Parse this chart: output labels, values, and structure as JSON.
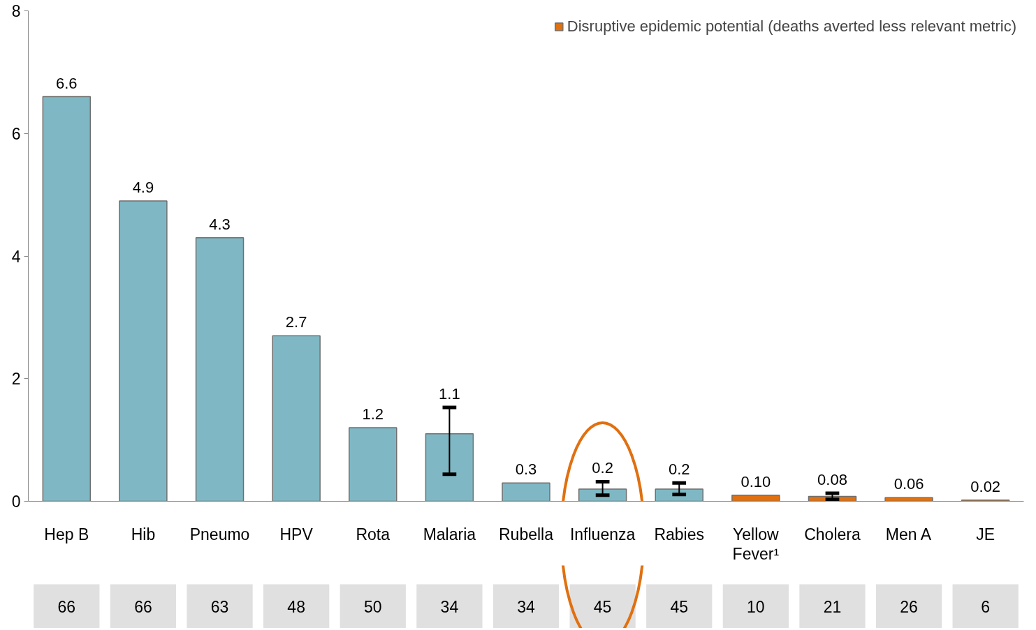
{
  "chart_data": {
    "type": "bar",
    "categories": [
      "Hep B",
      "Hib",
      "Pneumo",
      "HPV",
      "Rota",
      "Malaria",
      "Rubella",
      "Influenza",
      "Rabies",
      "Yellow Fever¹",
      "Cholera",
      "Men A",
      "JE"
    ],
    "series": [
      {
        "color": "#7fb8c4",
        "values": [
          6.6,
          4.9,
          4.3,
          2.7,
          1.2,
          1.1,
          0.3,
          0.2,
          0.2,
          null,
          null,
          null,
          null
        ],
        "value_labels": [
          "6.6",
          "4.9",
          "4.3",
          "2.7",
          "1.2",
          "1.1",
          "0.3",
          "0.2",
          "0.2",
          null,
          null,
          null,
          null
        ],
        "errors": [
          null,
          null,
          null,
          null,
          null,
          [
            0.44,
            1.53
          ],
          null,
          [
            0.1,
            0.32
          ],
          [
            0.11,
            0.3
          ],
          null,
          null,
          null,
          null
        ]
      },
      {
        "name": "Disruptive epidemic potential (deaths averted less relevant metric)",
        "color": "#e07010",
        "values": [
          null,
          null,
          null,
          null,
          null,
          null,
          null,
          null,
          null,
          0.1,
          0.08,
          0.06,
          0.02
        ],
        "value_labels": [
          null,
          null,
          null,
          null,
          null,
          null,
          null,
          null,
          null,
          "0.10",
          "0.08",
          "0.06",
          "0.02"
        ],
        "errors": [
          null,
          null,
          null,
          null,
          null,
          null,
          null,
          null,
          null,
          null,
          [
            0.03,
            0.13
          ],
          null,
          null
        ]
      }
    ],
    "ylim": [
      0,
      8
    ],
    "yticks": [
      0,
      2,
      4,
      6,
      8
    ],
    "grid": false,
    "legend": "top right",
    "annotations": [
      "66",
      "66",
      "63",
      "48",
      "50",
      "34",
      "34",
      "45",
      "45",
      "10",
      "21",
      "26",
      "6"
    ]
  }
}
